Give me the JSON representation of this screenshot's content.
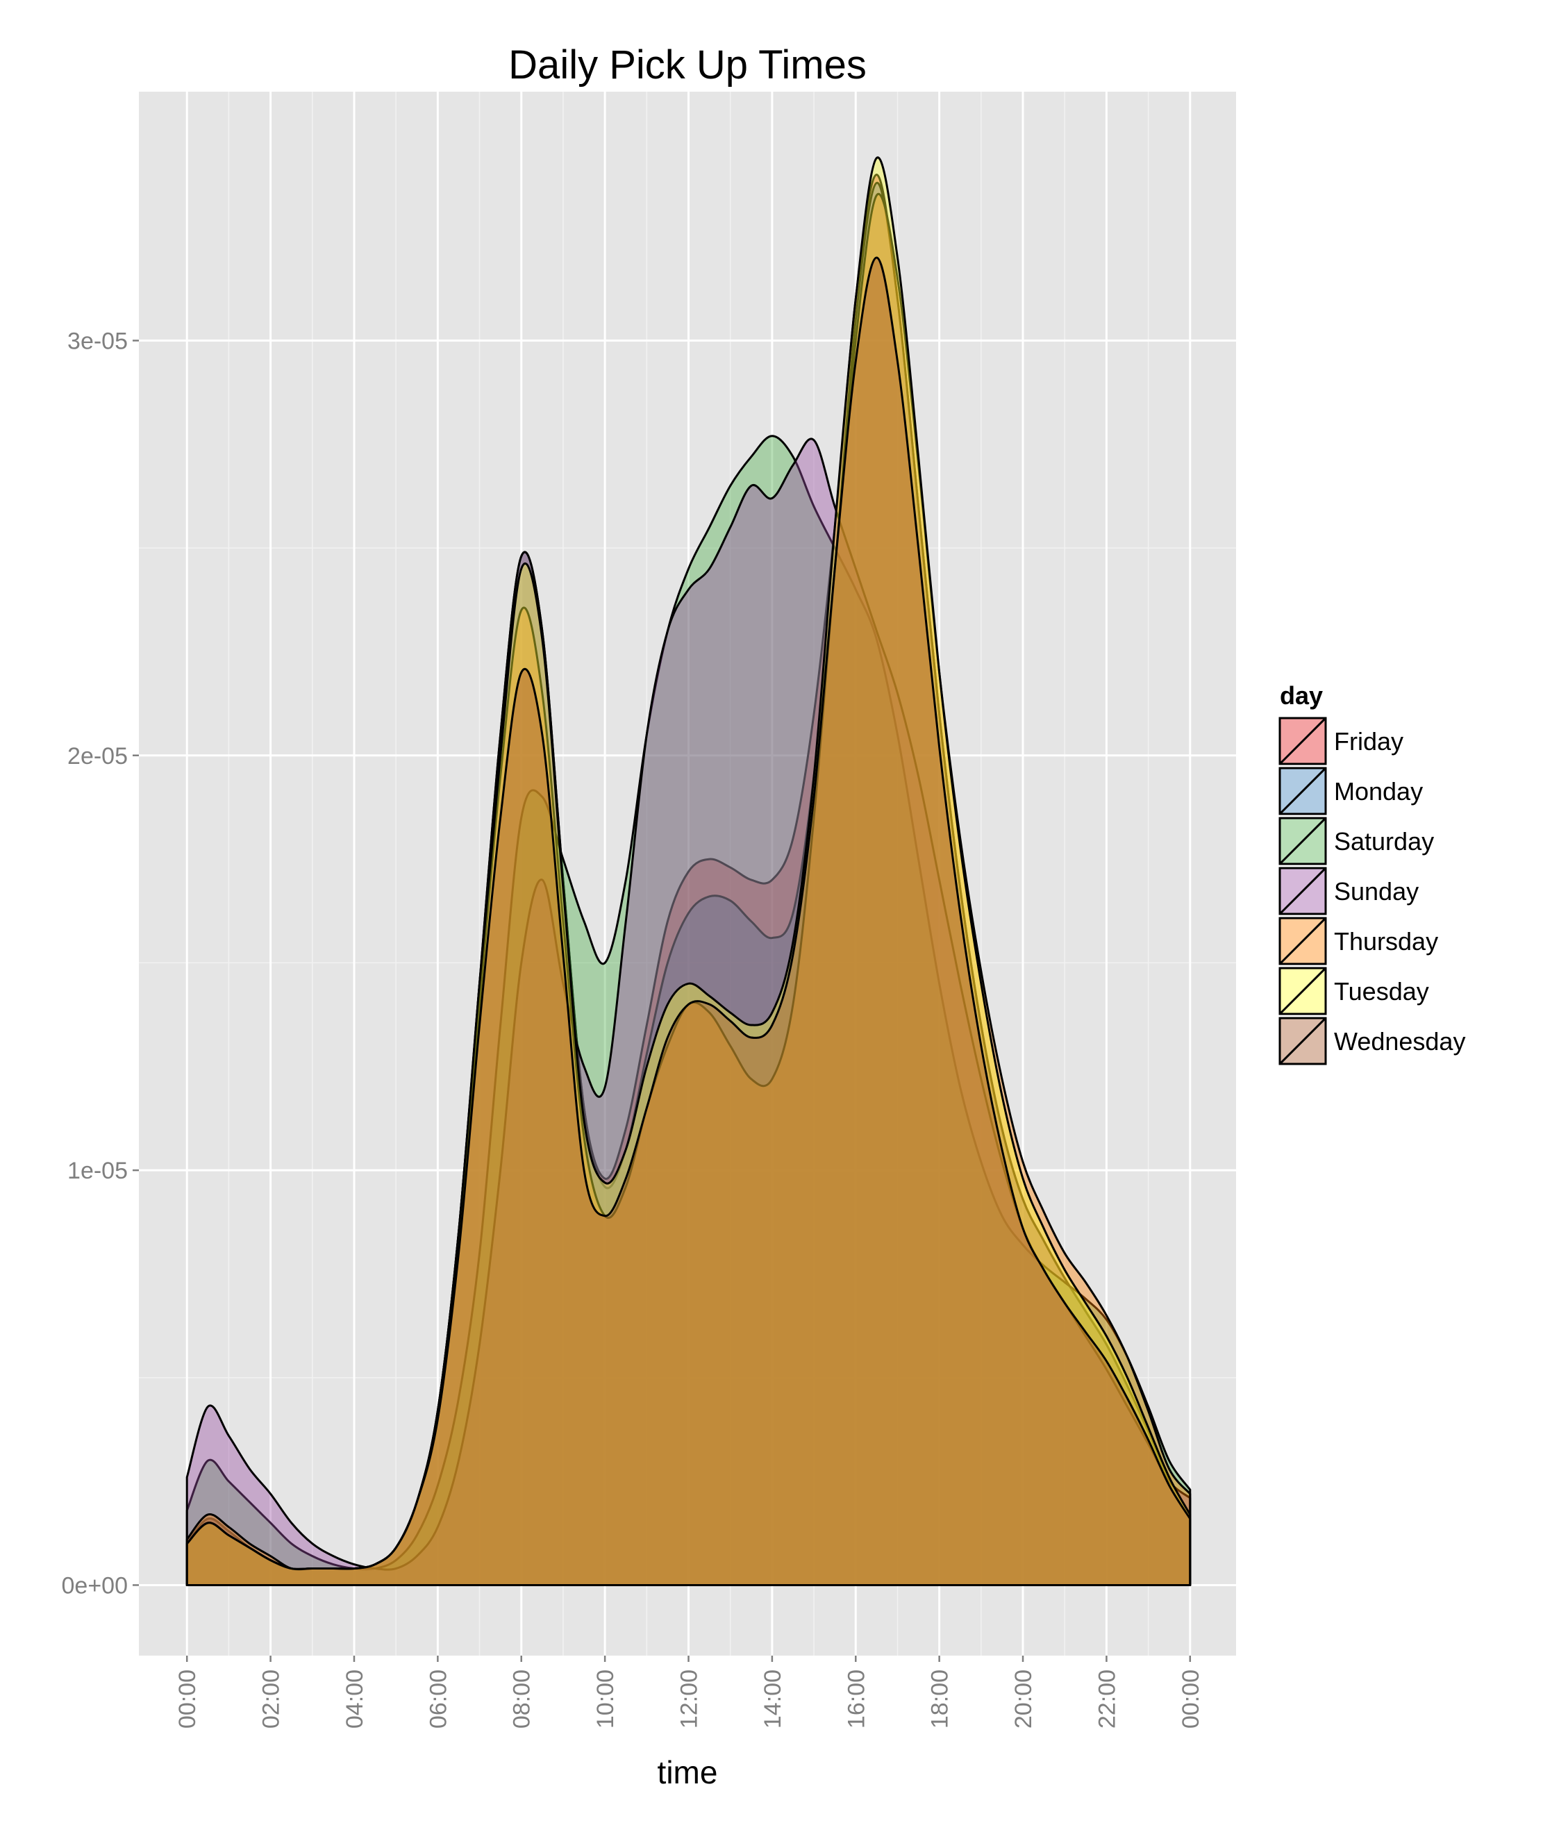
{
  "chart_data": {
    "type": "area",
    "title": "Daily Pick Up Times",
    "xlabel": "time",
    "ylabel": "",
    "x_unit": "hours",
    "xlim": [
      -1.15,
      25.1
    ],
    "ylim": [
      -1.7e-06,
      3.6e-05
    ],
    "x_ticks": [
      0,
      2,
      4,
      6,
      8,
      10,
      12,
      14,
      16,
      18,
      20,
      22,
      24
    ],
    "x_tick_labels": [
      "00:00",
      "02:00",
      "04:00",
      "06:00",
      "08:00",
      "10:00",
      "12:00",
      "14:00",
      "16:00",
      "18:00",
      "20:00",
      "22:00",
      "00:00"
    ],
    "y_ticks": [
      0,
      1e-05,
      2e-05,
      3e-05
    ],
    "y_tick_labels": [
      "0e+00",
      "1e-05",
      "2e-05",
      "3e-05"
    ],
    "grid": true,
    "legend": {
      "title": "day",
      "position": "right"
    },
    "x": [
      0,
      0.5,
      1,
      1.5,
      2,
      2.5,
      3,
      3.5,
      4,
      4.5,
      5,
      5.5,
      6,
      6.5,
      7,
      7.5,
      8,
      8.5,
      9,
      9.5,
      10,
      10.5,
      11,
      11.5,
      12,
      12.5,
      13,
      13.5,
      14,
      14.5,
      15,
      15.5,
      16,
      16.5,
      17,
      17.5,
      18,
      18.5,
      19,
      19.5,
      20,
      20.5,
      21,
      21.5,
      22,
      22.5,
      23,
      23.5,
      24
    ],
    "series": [
      {
        "name": "Friday",
        "color": "#e41a1c",
        "values": [
          1e-06,
          1.6e-06,
          1.3e-06,
          9e-07,
          6e-07,
          4e-07,
          4e-07,
          4e-07,
          4e-07,
          5e-07,
          9e-07,
          2e-06,
          4.2e-06,
          8.5e-06,
          1.45e-05,
          2.05e-05,
          2.48e-05,
          2.3e-05,
          1.7e-05,
          1.15e-05,
          9.8e-06,
          1.1e-05,
          1.35e-05,
          1.6e-05,
          1.72e-05,
          1.75e-05,
          1.73e-05,
          1.7e-05,
          1.7e-05,
          1.8e-05,
          2.1e-05,
          2.55e-05,
          3.1e-05,
          3.4e-05,
          3.1e-05,
          2.6e-05,
          2.1e-05,
          1.68e-05,
          1.35e-05,
          1.1e-05,
          9.3e-06,
          8.3e-06,
          7.4e-06,
          6.6e-06,
          5.8e-06,
          4.8e-06,
          3.7e-06,
          2.5e-06,
          1.6e-06
        ]
      },
      {
        "name": "Monday",
        "color": "#377eb8",
        "values": [
          1e-06,
          1.6e-06,
          1.3e-06,
          9e-07,
          6e-07,
          4e-07,
          4e-07,
          4e-07,
          4e-07,
          5e-07,
          9e-07,
          2e-06,
          4.2e-06,
          8.5e-06,
          1.45e-05,
          2.05e-05,
          2.48e-05,
          2.3e-05,
          1.7e-05,
          1.15e-05,
          9.6e-06,
          1.05e-05,
          1.28e-05,
          1.5e-05,
          1.62e-05,
          1.66e-05,
          1.65e-05,
          1.6e-05,
          1.56e-05,
          1.62e-05,
          1.95e-05,
          2.45e-05,
          3.05e-05,
          3.38e-05,
          3.1e-05,
          2.6e-05,
          2.1e-05,
          1.68e-05,
          1.35e-05,
          1.1e-05,
          9.3e-06,
          8.3e-06,
          7.4e-06,
          6.6e-06,
          5.8e-06,
          4.8e-06,
          3.7e-06,
          2.5e-06,
          1.6e-06
        ]
      },
      {
        "name": "Saturday",
        "color": "#4daf4a",
        "values": [
          1.8e-06,
          3e-06,
          2.5e-06,
          2e-06,
          1.5e-06,
          1e-06,
          7e-07,
          5e-07,
          4e-07,
          4e-07,
          6e-07,
          1.2e-06,
          2.4e-06,
          4.5e-06,
          8e-06,
          1.35e-05,
          1.85e-05,
          1.9e-05,
          1.75e-05,
          1.6e-05,
          1.5e-05,
          1.7e-05,
          2.05e-05,
          2.3e-05,
          2.45e-05,
          2.55e-05,
          2.65e-05,
          2.72e-05,
          2.77e-05,
          2.72e-05,
          2.6e-05,
          2.5e-05,
          2.4e-05,
          2.28e-05,
          2.05e-05,
          1.75e-05,
          1.45e-05,
          1.2e-05,
          1.02e-05,
          8.9e-06,
          8.2e-06,
          7.7e-06,
          7.3e-06,
          6.9e-06,
          6.4e-06,
          5.5e-06,
          4.3e-06,
          3e-06,
          2.3e-06
        ]
      },
      {
        "name": "Sunday",
        "color": "#984ea3",
        "values": [
          2.6e-06,
          4.3e-06,
          3.6e-06,
          2.8e-06,
          2.2e-06,
          1.5e-06,
          1e-06,
          7e-07,
          5e-07,
          4e-07,
          4e-07,
          7e-07,
          1.4e-06,
          3e-06,
          5.8e-06,
          1e-05,
          1.5e-05,
          1.7e-05,
          1.45e-05,
          1.25e-05,
          1.2e-05,
          1.6e-05,
          2.05e-05,
          2.3e-05,
          2.4e-05,
          2.45e-05,
          2.55e-05,
          2.65e-05,
          2.62e-05,
          2.7e-05,
          2.76e-05,
          2.6e-05,
          2.45e-05,
          2.3e-05,
          2.15e-05,
          1.95e-05,
          1.7e-05,
          1.45e-05,
          1.22e-05,
          1.02e-05,
          8.6e-06,
          7.6e-06,
          6.8e-06,
          6e-06,
          5.2e-06,
          4.3e-06,
          3.4e-06,
          2.5e-06,
          2.1e-06
        ]
      },
      {
        "name": "Thursday",
        "color": "#ff7f00",
        "values": [
          1.1e-06,
          1.7e-06,
          1.4e-06,
          1e-06,
          7e-07,
          4e-07,
          4e-07,
          4e-07,
          4e-07,
          5e-07,
          9e-07,
          2e-06,
          4e-06,
          8.2e-06,
          1.4e-05,
          1.95e-05,
          2.35e-05,
          2.15e-05,
          1.6e-05,
          1.08e-05,
          8.9e-06,
          9.6e-06,
          1.15e-05,
          1.3e-05,
          1.4e-05,
          1.38e-05,
          1.3e-05,
          1.22e-05,
          1.22e-05,
          1.4e-05,
          1.85e-05,
          2.45e-05,
          3e-05,
          3.35e-05,
          3.15e-05,
          2.7e-05,
          2.2e-05,
          1.8e-05,
          1.48e-05,
          1.22e-05,
          1.02e-05,
          9e-06,
          8e-06,
          7.3e-06,
          6.5e-06,
          5.5e-06,
          4.2e-06,
          2.8e-06,
          2.2e-06
        ]
      },
      {
        "name": "Tuesday",
        "color": "#ffff33",
        "values": [
          1e-06,
          1.5e-06,
          1.2e-06,
          9e-07,
          6e-07,
          4e-07,
          4e-07,
          4e-07,
          4e-07,
          5e-07,
          9e-07,
          2e-06,
          4.2e-06,
          8.5e-06,
          1.45e-05,
          2e-05,
          2.45e-05,
          2.28e-05,
          1.68e-05,
          1.12e-05,
          9.7e-06,
          1.05e-05,
          1.25e-05,
          1.4e-05,
          1.45e-05,
          1.42e-05,
          1.38e-05,
          1.35e-05,
          1.38e-05,
          1.55e-05,
          1.95e-05,
          2.55e-05,
          3.1e-05,
          3.44e-05,
          3.2e-05,
          2.72e-05,
          2.2e-05,
          1.78e-05,
          1.45e-05,
          1.18e-05,
          9.8e-06,
          8.6e-06,
          7.6e-06,
          6.8e-06,
          6e-06,
          5e-06,
          3.8e-06,
          2.6e-06,
          1.7e-06
        ]
      },
      {
        "name": "Wednesday",
        "color": "#a65628",
        "values": [
          1e-06,
          1.5e-06,
          1.2e-06,
          9e-07,
          6e-07,
          4e-07,
          4e-07,
          4e-07,
          4e-07,
          5e-07,
          9e-07,
          2e-06,
          4e-06,
          8e-06,
          1.35e-05,
          1.85e-05,
          2.2e-05,
          2.05e-05,
          1.52e-05,
          1e-05,
          8.9e-06,
          9.8e-06,
          1.15e-05,
          1.32e-05,
          1.4e-05,
          1.4e-05,
          1.36e-05,
          1.32e-05,
          1.35e-05,
          1.52e-05,
          1.9e-05,
          2.45e-05,
          2.95e-05,
          3.2e-05,
          2.95e-05,
          2.5e-05,
          2.02e-05,
          1.62e-05,
          1.3e-05,
          1.05e-05,
          8.6e-06,
          7.6e-06,
          6.8e-06,
          6.1e-06,
          5.4e-06,
          4.5e-06,
          3.5e-06,
          2.4e-06,
          1.6e-06
        ]
      }
    ]
  }
}
